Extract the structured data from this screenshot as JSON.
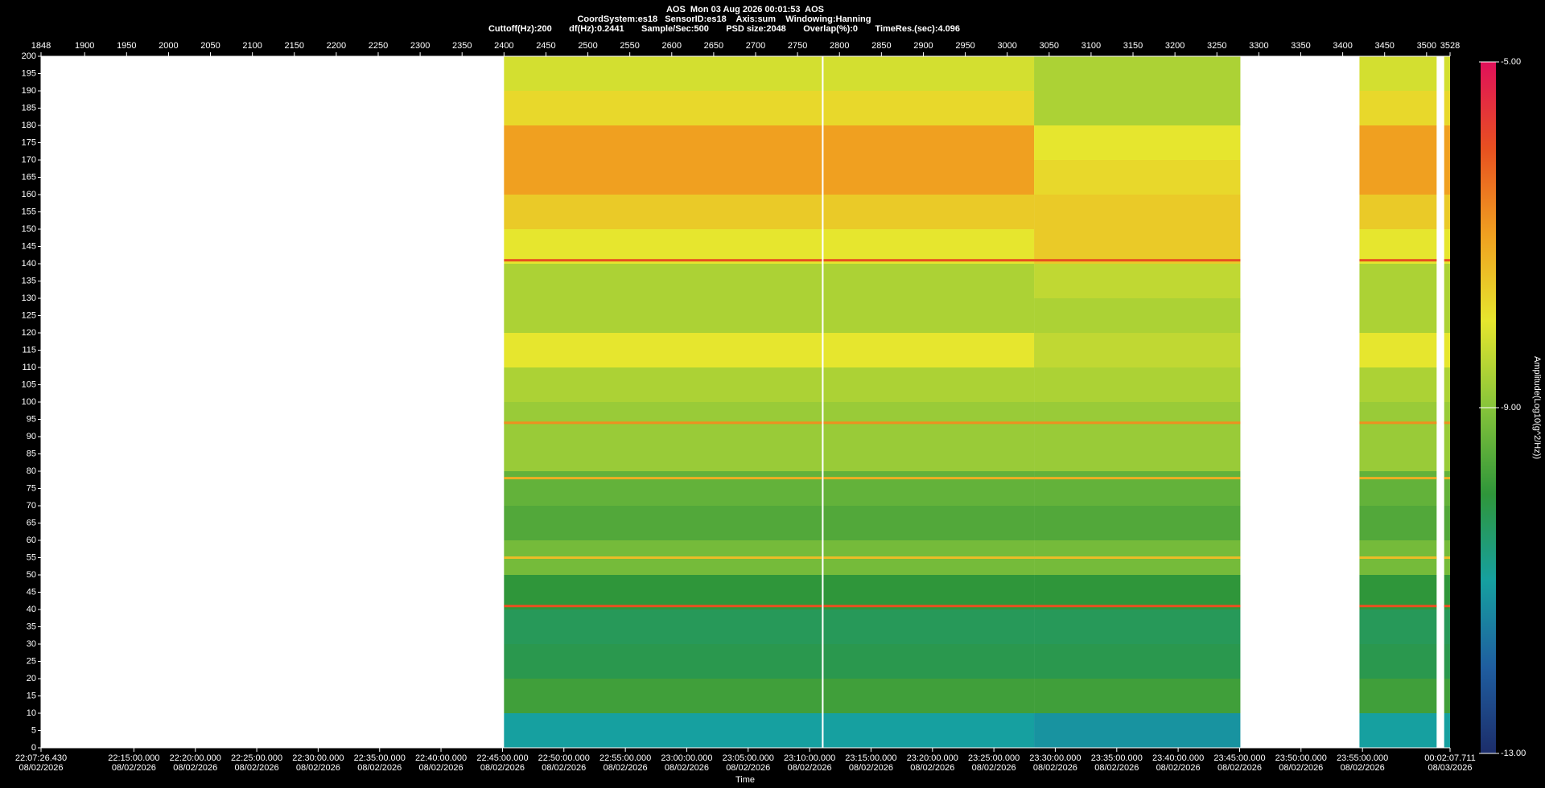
{
  "chart_data": {
    "type": "heatmap",
    "title": "AOS  Mon 03 Aug 2026 00:01:53  AOS",
    "subtitle": [
      "CoordSystem:es18   SensorID:es18    Axis:sum    Windowing:Hanning",
      "Cuttoff(Hz):200       df(Hz):0.2441       Sample/Sec:500       PSD size:2048       Overlap(%):0       TimeRes.(sec):4.096"
    ],
    "xlabel": "Time",
    "xlim": [
      1848,
      3528
    ],
    "xticks": [
      1848,
      1900,
      1950,
      2000,
      2050,
      2100,
      2150,
      2200,
      2250,
      2300,
      2350,
      2400,
      2450,
      2500,
      2550,
      2600,
      2650,
      2700,
      2750,
      2800,
      2850,
      2900,
      2950,
      3000,
      3050,
      3100,
      3150,
      3200,
      3250,
      3300,
      3350,
      3400,
      3450,
      3500,
      3528
    ],
    "x2ticks": [
      {
        "value": 1848,
        "label": "22:07:26.430",
        "date": "08/02/2026"
      },
      {
        "value": 1958.7,
        "label": "22:15:00.000",
        "date": "08/02/2026"
      },
      {
        "value": 2032.0,
        "label": "22:20:00.000",
        "date": "08/02/2026"
      },
      {
        "value": 2105.2,
        "label": "22:25:00.000",
        "date": "08/02/2026"
      },
      {
        "value": 2178.4,
        "label": "22:30:00.000",
        "date": "08/02/2026"
      },
      {
        "value": 2251.7,
        "label": "22:35:00.000",
        "date": "08/02/2026"
      },
      {
        "value": 2324.9,
        "label": "22:40:00.000",
        "date": "08/02/2026"
      },
      {
        "value": 2398.2,
        "label": "22:45:00.000",
        "date": "08/02/2026"
      },
      {
        "value": 2471.4,
        "label": "22:50:00.000",
        "date": "08/02/2026"
      },
      {
        "value": 2544.7,
        "label": "22:55:00.000",
        "date": "08/02/2026"
      },
      {
        "value": 2617.9,
        "label": "23:00:00.000",
        "date": "08/02/2026"
      },
      {
        "value": 2691.1,
        "label": "23:05:00.000",
        "date": "08/02/2026"
      },
      {
        "value": 2764.4,
        "label": "23:10:00.000",
        "date": "08/02/2026"
      },
      {
        "value": 2837.6,
        "label": "23:15:00.000",
        "date": "08/02/2026"
      },
      {
        "value": 2910.9,
        "label": "23:20:00.000",
        "date": "08/02/2026"
      },
      {
        "value": 2984.1,
        "label": "23:25:00.000",
        "date": "08/02/2026"
      },
      {
        "value": 3057.3,
        "label": "23:30:00.000",
        "date": "08/02/2026"
      },
      {
        "value": 3130.6,
        "label": "23:35:00.000",
        "date": "08/02/2026"
      },
      {
        "value": 3203.8,
        "label": "23:40:00.000",
        "date": "08/02/2026"
      },
      {
        "value": 3277.1,
        "label": "23:45:00.000",
        "date": "08/02/2026"
      },
      {
        "value": 3350.3,
        "label": "23:50:00.000",
        "date": "08/02/2026"
      },
      {
        "value": 3423.6,
        "label": "23:55:00.000",
        "date": "08/02/2026"
      },
      {
        "value": 3528,
        "label": "00:02:07.711",
        "date": "08/03/2026"
      }
    ],
    "ylim": [
      0,
      200
    ],
    "yticks": [
      0,
      5,
      10,
      15,
      20,
      25,
      30,
      35,
      40,
      45,
      50,
      55,
      60,
      65,
      70,
      75,
      80,
      85,
      90,
      95,
      100,
      105,
      110,
      115,
      120,
      125,
      130,
      135,
      140,
      145,
      150,
      155,
      160,
      165,
      170,
      175,
      180,
      185,
      190,
      195,
      200
    ],
    "y_edges": [
      0,
      10,
      20,
      30,
      40,
      50,
      60,
      70,
      80,
      90,
      100,
      110,
      120,
      130,
      140,
      150,
      160,
      170,
      180,
      190,
      200
    ],
    "segments": [
      {
        "x": [
          2400,
          2779
        ],
        "z": [
          -11.0,
          -9.8,
          -10.2,
          -10.3,
          -10.0,
          -9.2,
          -9.6,
          -9.4,
          -8.8,
          -8.8,
          -8.6,
          -8.0,
          -8.6,
          -8.6,
          -8.0,
          -7.6,
          -7.0,
          -7.0,
          -7.8,
          -8.2
        ]
      },
      {
        "x": [
          2781,
          3032
        ],
        "z": [
          -11.0,
          -9.8,
          -10.2,
          -10.3,
          -10.0,
          -9.2,
          -9.6,
          -9.4,
          -8.8,
          -8.8,
          -8.6,
          -8.0,
          -8.6,
          -8.6,
          -8.0,
          -7.6,
          -7.0,
          -7.0,
          -7.8,
          -8.2
        ]
      },
      {
        "x": [
          3032,
          3278
        ],
        "z": [
          -11.2,
          -9.8,
          -10.2,
          -10.3,
          -10.0,
          -9.2,
          -9.6,
          -9.4,
          -8.8,
          -8.8,
          -8.6,
          -8.4,
          -8.6,
          -8.4,
          -7.6,
          -7.6,
          -7.8,
          -8.0,
          -8.6,
          -8.6
        ]
      },
      {
        "x": [
          3420,
          3512
        ],
        "z": [
          -11.0,
          -9.8,
          -10.2,
          -10.3,
          -10.0,
          -9.2,
          -9.6,
          -9.4,
          -8.8,
          -8.8,
          -8.6,
          -8.0,
          -8.6,
          -8.6,
          -8.0,
          -7.6,
          -7.0,
          -7.0,
          -7.8,
          -8.2
        ]
      },
      {
        "x": [
          3521,
          3528
        ],
        "z": [
          -11.0,
          -9.8,
          -10.2,
          -10.3,
          -10.0,
          -9.2,
          -9.6,
          -9.4,
          -8.8,
          -8.8,
          -8.6,
          -8.0,
          -8.6,
          -8.6,
          -8.0,
          -7.6,
          -7.0,
          -7.0,
          -7.8,
          -8.2
        ]
      }
    ],
    "lines": {
      "y": [
        141,
        94,
        78,
        55,
        41
      ],
      "z": [
        -6.0,
        -6.8,
        -7.2,
        -7.4,
        -6.0
      ]
    },
    "colormap": [
      "#1c2d6a",
      "#1f5ea0",
      "#16a0a0",
      "#2f963a",
      "#86c43a",
      "#e6e62e",
      "#f0a020",
      "#e85020",
      "#e0105a"
    ],
    "colorbar": {
      "lim": [
        -13,
        -5
      ],
      "ticks": [
        {
          "value": -13,
          "label": "-13.00"
        },
        {
          "value": -9,
          "label": "-9.00"
        },
        {
          "value": -5,
          "label": "-5.00"
        }
      ],
      "label": "Amplitude(Log10(g^2/Hz))"
    }
  }
}
